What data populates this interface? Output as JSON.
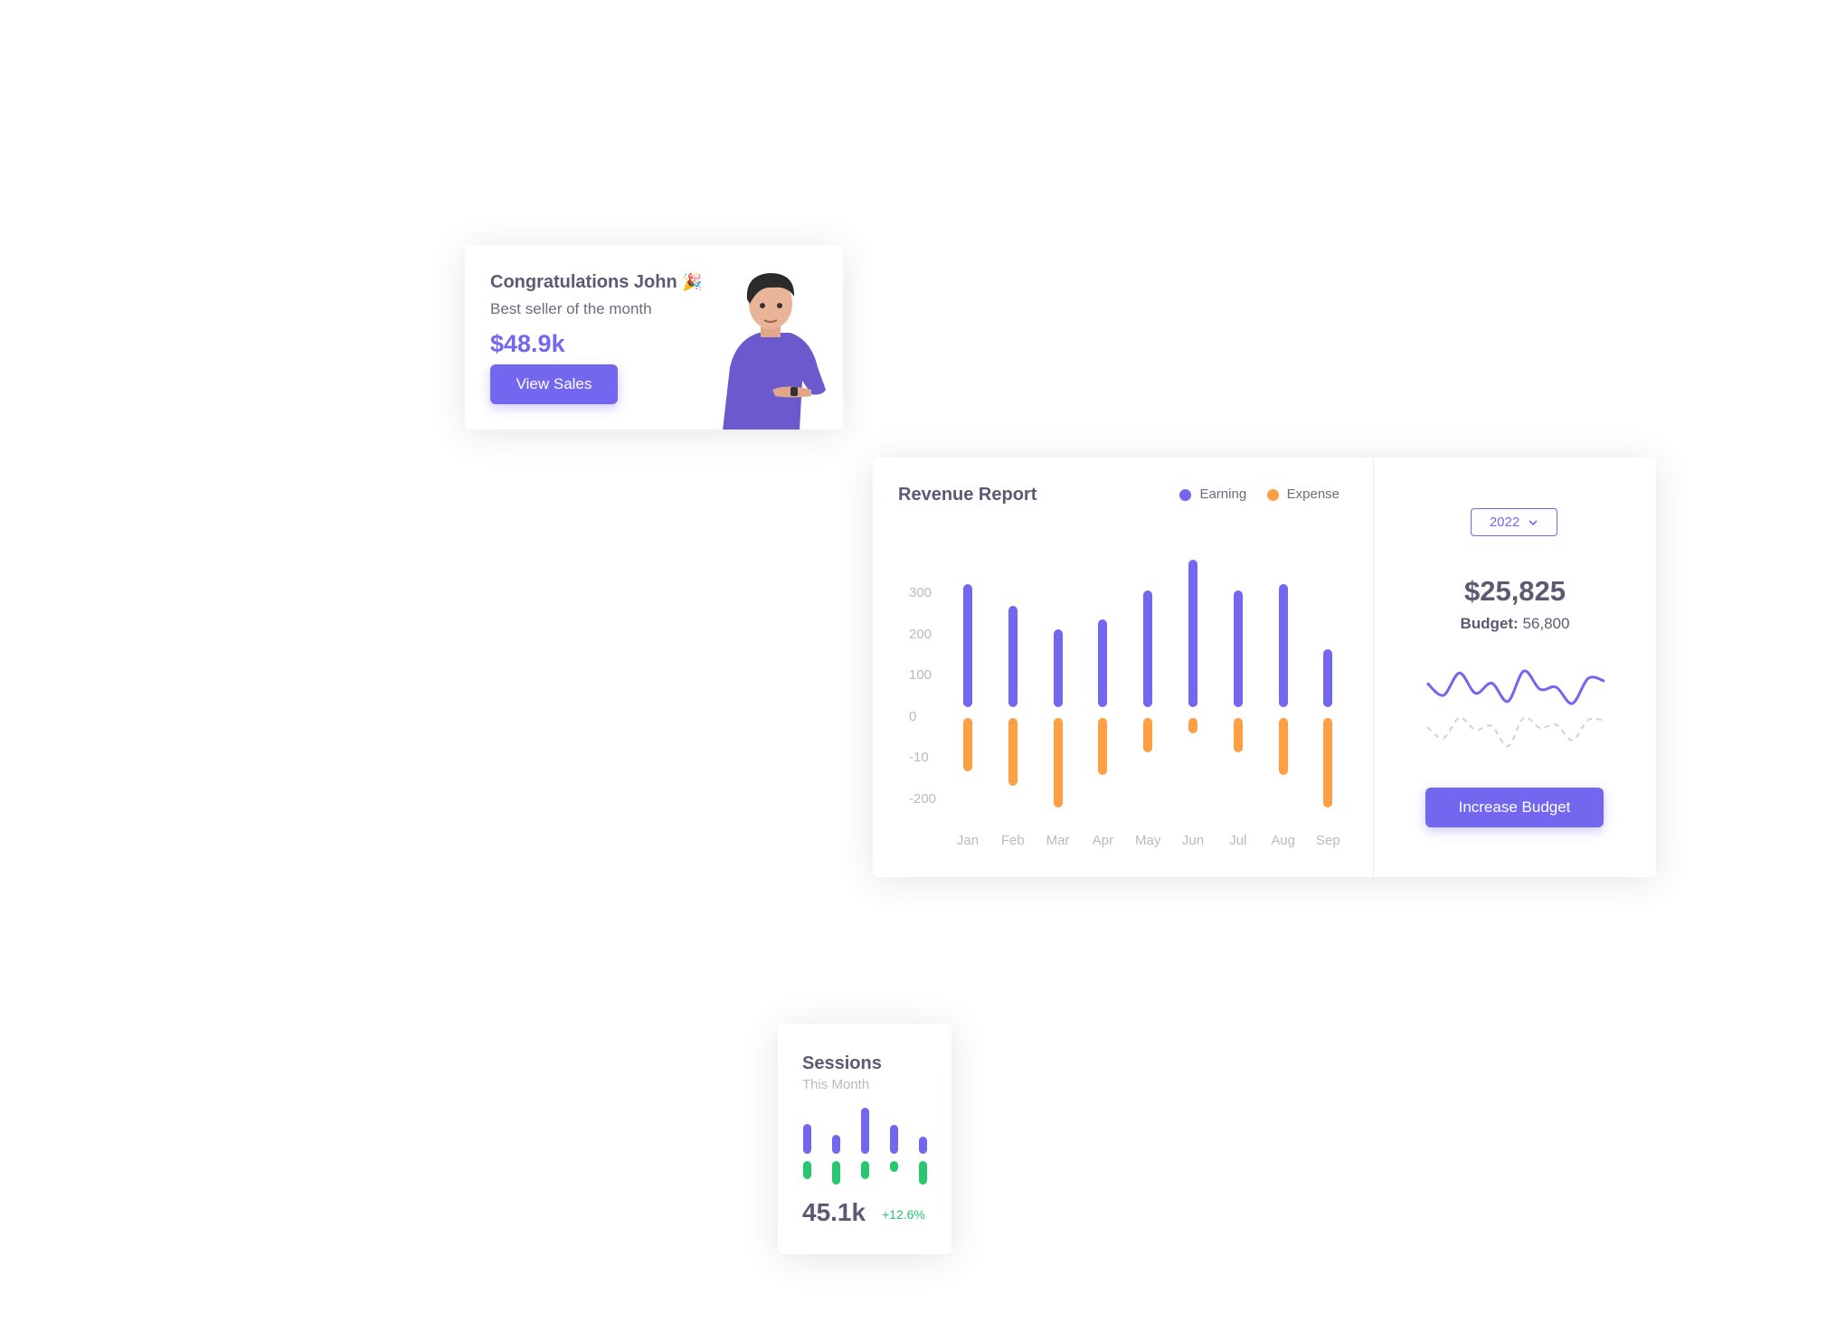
{
  "colors": {
    "primary": "#7367F0",
    "warning": "#FF9F43",
    "success": "#28C76F",
    "text": "#5E5873",
    "muted": "#B9B9C3"
  },
  "congrats": {
    "title": "Congratulations John",
    "emoji": "🎉",
    "subtitle": "Best seller of the month",
    "amount": "$48.9k",
    "button": "View Sales"
  },
  "revenue": {
    "title": "Revenue Report",
    "legend": [
      {
        "label": "Earning",
        "color": "#7367F0"
      },
      {
        "label": "Expense",
        "color": "#FF9F43"
      }
    ],
    "year": "2022",
    "total": "$25,825",
    "budget_label": "Budget:",
    "budget_value": "56,800",
    "button": "Increase Budget"
  },
  "chart_data": [
    {
      "type": "bar",
      "title": "Revenue Report",
      "categories": [
        "Jan",
        "Feb",
        "Mar",
        "Apr",
        "May",
        "Jun",
        "Jul",
        "Aug",
        "Sep"
      ],
      "y_tick_labels": [
        "300",
        "200",
        "100",
        "0",
        "-10",
        "-200"
      ],
      "ylim": [
        -250,
        360
      ],
      "grid": false,
      "legend": "top-right",
      "series": [
        {
          "name": "Earning",
          "color": "#7367F0",
          "values": [
            300,
            247,
            190,
            213,
            283,
            358,
            283,
            300,
            140
          ]
        },
        {
          "name": "Expense",
          "color": "#FF9F43",
          "values": [
            -157,
            -192,
            -245,
            -165,
            -110,
            -64,
            -110,
            -165,
            -245
          ]
        }
      ]
    },
    {
      "type": "line",
      "series": [
        {
          "color": "#7367F0",
          "style": "solid",
          "values": [
            0.7,
            0.4,
            0.95,
            0.45,
            0.7,
            0.25,
            1.0,
            0.55,
            0.6,
            0.2,
            0.82,
            0.75
          ]
        },
        {
          "color": "#D0D2D6",
          "style": "dashed",
          "values": [
            0.62,
            0.35,
            0.85,
            0.55,
            0.65,
            0.15,
            0.85,
            0.6,
            0.68,
            0.3,
            0.8,
            0.78
          ]
        }
      ]
    },
    {
      "type": "bar",
      "title": "Sessions",
      "series": [
        {
          "color": "#7367F0",
          "values": [
            33,
            21,
            51,
            32,
            19
          ]
        },
        {
          "color": "#28C76F",
          "values": [
            -20,
            -26,
            -20,
            -12,
            -26
          ]
        }
      ]
    }
  ],
  "sessions": {
    "title": "Sessions",
    "subtitle": "This Month",
    "value": "45.1k",
    "change": "+12.6%"
  }
}
